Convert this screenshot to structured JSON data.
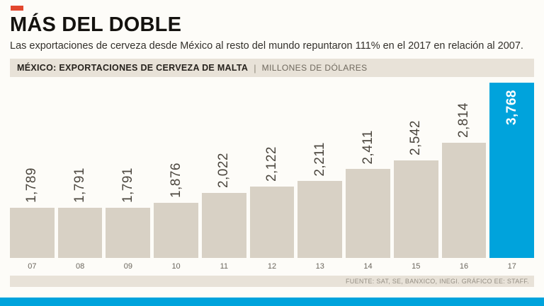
{
  "colors": {
    "background": "#fdfcf8",
    "red_accent": "#e2472e",
    "blue_accent": "#00a3dc",
    "bar": "#d8d1c5",
    "strip": "#e8e2d8",
    "value_text": "#4b463e",
    "year_text": "#6b665d",
    "source_text": "#948e83"
  },
  "title": "MÁS DEL DOBLE",
  "subtitle": "Las exportaciones de cerveza desde México al resto del mundo repuntaron 111% en el 2017 en relación al 2007.",
  "chart_header": {
    "title": "MÉXICO: EXPORTACIONES DE CERVEZA DE MALTA",
    "separator": "|",
    "units": "MILLONES DE DÓLARES"
  },
  "footer": {
    "source": "FUENTE: SAT, SE, BANXICO, INEGI.  GRÁFICO EE: STAFF."
  },
  "chart_data": {
    "type": "bar",
    "title": "MÉXICO: EXPORTACIONES DE CERVEZA DE MALTA",
    "units": "MILLONES DE DÓLARES",
    "categories": [
      "07",
      "08",
      "09",
      "10",
      "11",
      "12",
      "13",
      "14",
      "15",
      "16",
      "17"
    ],
    "values": [
      1789,
      1791,
      1791,
      1876,
      2022,
      2122,
      2211,
      2411,
      2542,
      2814,
      3768
    ],
    "value_labels": [
      "1,789",
      "1,791",
      "1,791",
      "1,876",
      "2,022",
      "2,122",
      "2,211",
      "2,411",
      "2,542",
      "2,814",
      "3,768"
    ],
    "highlight_index": 10,
    "ylim": [
      1000,
      3768
    ],
    "grid": false,
    "legend": false,
    "bar_color": "#d8d1c5",
    "highlight_color": "#00a3dc"
  }
}
